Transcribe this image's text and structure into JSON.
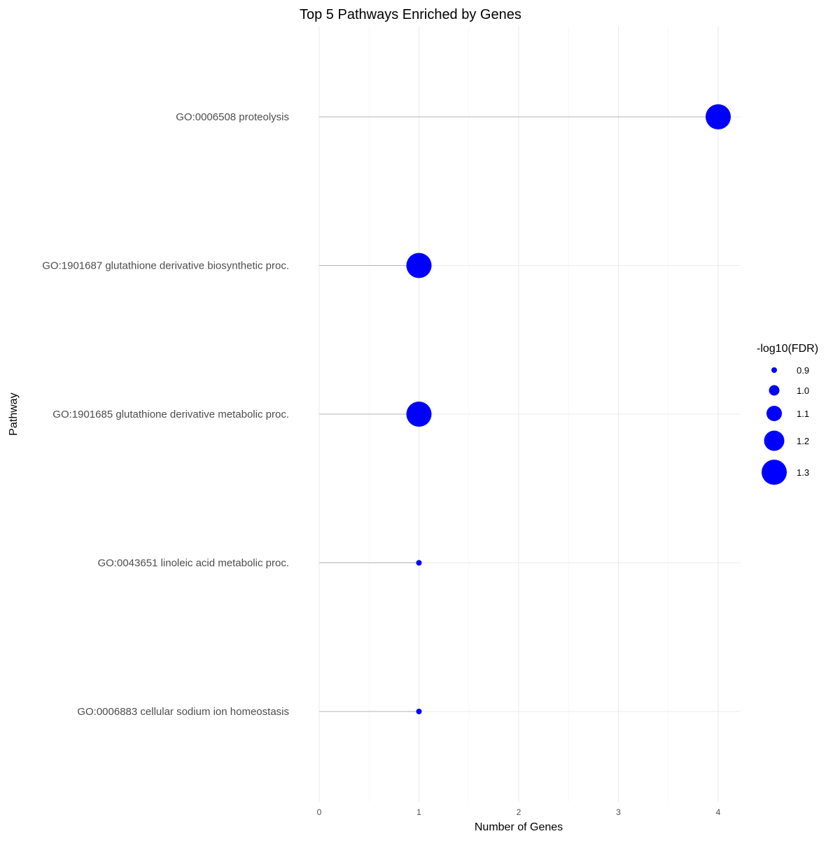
{
  "chart_data": {
    "type": "scatter",
    "subtype": "lollipop",
    "title": "Top 5 Pathways Enriched by Genes",
    "xlabel": "Number of Genes",
    "ylabel": "Pathway",
    "xlim": [
      0,
      4.2
    ],
    "x_ticks": [
      0,
      1,
      2,
      3,
      4
    ],
    "categories": [
      "GO:0006508 proteolysis",
      "GO:1901687 glutathione derivative biosynthetic proc.",
      "GO:1901685 glutathione derivative metabolic proc.",
      "GO:0043651 linoleic acid metabolic proc.",
      "GO:0006883 cellular sodium ion homeostasis"
    ],
    "values": [
      4,
      1,
      1,
      1,
      1
    ],
    "size_values": [
      1.3,
      1.3,
      1.3,
      0.9,
      0.9
    ],
    "size_scale": [
      0.9,
      1.3
    ],
    "legend": {
      "title": "-log10(FDR)",
      "position": "right",
      "breaks": [
        0.9,
        1.0,
        1.1,
        1.2,
        1.3
      ],
      "labels": [
        "0.9",
        "1.0",
        "1.1",
        "1.2",
        "1.3"
      ]
    },
    "grid": true,
    "point_color": "#0000ff",
    "stem_color": "#b3b3b3"
  }
}
